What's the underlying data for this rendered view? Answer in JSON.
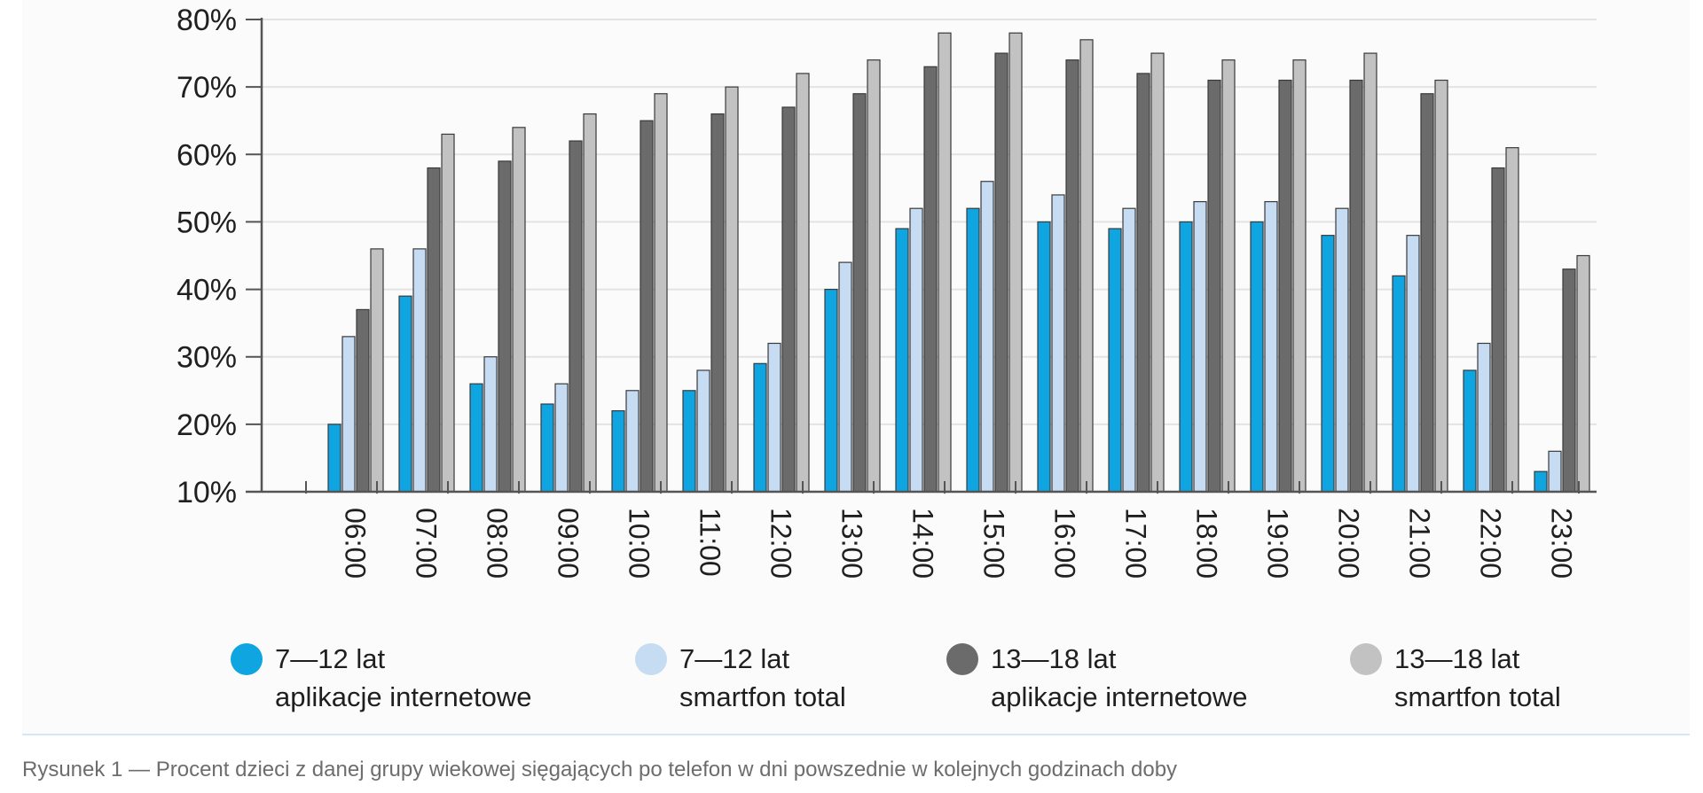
{
  "chart_data": {
    "type": "bar",
    "categories": [
      "06:00",
      "07:00",
      "08:00",
      "09:00",
      "10:00",
      "11:00",
      "12:00",
      "13:00",
      "14:00",
      "15:00",
      "16:00",
      "17:00",
      "18:00",
      "19:00",
      "20:00",
      "21:00",
      "22:00",
      "23:00"
    ],
    "series": [
      {
        "name": "7—12 lat aplikacje internetowe",
        "label_lines": [
          "7—12 lat",
          "aplikacje internetowe"
        ],
        "color": "#0ea5e0",
        "values": [
          20,
          39,
          26,
          23,
          22,
          25,
          29,
          40,
          49,
          52,
          50,
          49,
          50,
          50,
          48,
          42,
          28,
          13
        ]
      },
      {
        "name": "7—12 lat smartfon total",
        "label_lines": [
          "7—12 lat",
          "smartfon total"
        ],
        "color": "#c5dcf2",
        "values": [
          33,
          46,
          30,
          26,
          25,
          28,
          32,
          44,
          52,
          56,
          54,
          52,
          53,
          53,
          52,
          48,
          32,
          16
        ]
      },
      {
        "name": "13—18 lat aplikacje internetowe",
        "label_lines": [
          "13—18 lat",
          "aplikacje internetowe"
        ],
        "color": "#6b6b6b",
        "values": [
          37,
          58,
          59,
          62,
          65,
          66,
          67,
          69,
          73,
          75,
          74,
          72,
          71,
          71,
          71,
          69,
          58,
          43
        ]
      },
      {
        "name": "13—18 lat smartfon total",
        "label_lines": [
          "13—18 lat",
          "smartfon total"
        ],
        "color": "#c2c2c2",
        "values": [
          46,
          63,
          64,
          66,
          69,
          70,
          72,
          74,
          78,
          78,
          77,
          75,
          74,
          74,
          75,
          71,
          61,
          45
        ]
      }
    ],
    "y_ticks": [
      "10%",
      "20%",
      "30%",
      "40%",
      "50%",
      "60%",
      "70%",
      "80%"
    ],
    "ylim": [
      10,
      80
    ],
    "grid": true,
    "legend_position": "bottom",
    "title": "",
    "xlabel": "",
    "ylabel": ""
  },
  "caption": "Rysunek 1 — Procent dzieci z danej grupy wiekowej sięgających po telefon w dni powszednie w kolejnych godzinach doby"
}
